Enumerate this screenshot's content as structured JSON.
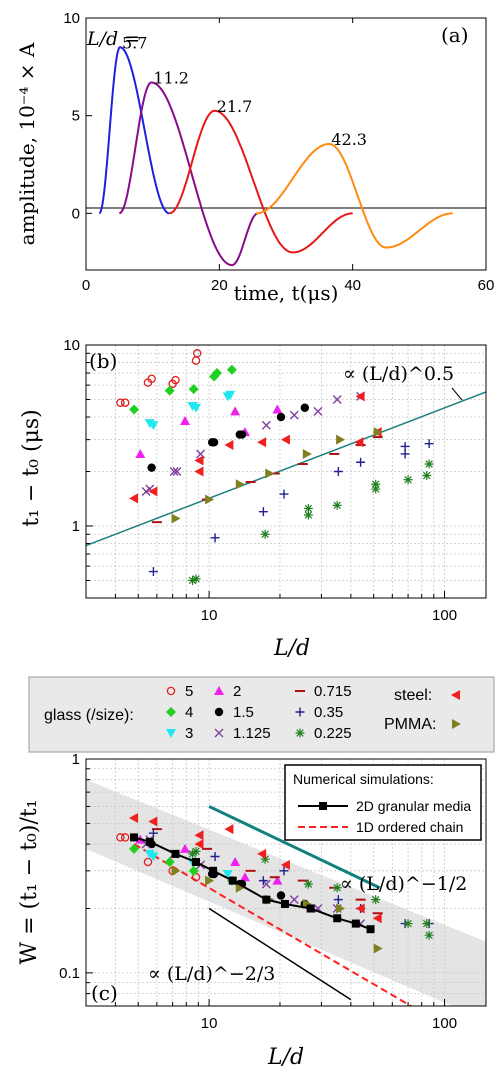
{
  "panel_a": {
    "label": "(a)",
    "legend_prefix": "L/d =",
    "xlabel": "time, t(μs)",
    "ylabel": "amplitude, 10⁻⁴ × A"
  },
  "panel_b": {
    "label": "(b)",
    "xlabel": "L/d",
    "ylabel": "t₁ − t₀ (μs)",
    "annotation": "∝ (L/d)^0.5"
  },
  "legend": {
    "glass_label": "glass (/size):",
    "steel_label": "steel:",
    "pmma_label": "PMMA:"
  },
  "panel_c": {
    "label": "(c)",
    "xlabel": "L/d",
    "ylabel": "W = (t₁ − t₀)/t₁",
    "box_title": "Numerical simulations:",
    "annotation_half": "∝ (L/d)^−1/2",
    "annotation_twothirds": "∝ (L/d)^−2/3"
  },
  "colors": {
    "s5": "#e02020",
    "s4": "#20d020",
    "s3": "#20e8f0",
    "s2": "#f020f0",
    "s1_5": "#000000",
    "s1_125": "#8040a0",
    "s0_715": "#b01010",
    "s0_35": "#202090",
    "s0_225": "#208020",
    "steel": "#f02020",
    "pmma": "#808020",
    "fit_b": "#208080",
    "sim2d": "#000000",
    "sim1d": "#ff2020",
    "band": "#e4e4e4",
    "teal": "#108080"
  },
  "chart_data": [
    {
      "type": "line",
      "title": "",
      "xlabel": "time, t(μs)",
      "ylabel": "amplitude, 10⁻⁴ × A",
      "xlim": [
        0,
        60
      ],
      "ylim": [
        -2.9,
        10
      ],
      "xticks": [
        0,
        20,
        40,
        60
      ],
      "yticks": [
        0,
        5,
        10
      ],
      "series": [
        {
          "name": "5.7",
          "color": "#2020e0",
          "t0": 2.0,
          "peak_t": 5.1,
          "peak": 8.5,
          "trough_t": 13.0,
          "trough": 0.0,
          "end_t": 12.5
        },
        {
          "name": "11.2",
          "color": "#8a0a8a",
          "t0": 5.0,
          "peak_t": 9.8,
          "peak": 6.7,
          "trough_t": 21.9,
          "trough": -2.65,
          "end_t": 25.8
        },
        {
          "name": "21.7",
          "color": "#e81818",
          "t0": 12.5,
          "peak_t": 19.3,
          "peak": 5.25,
          "trough_t": 31.0,
          "trough": -2.0,
          "end_t": 40.0
        },
        {
          "name": "42.3",
          "color": "#ff8a10",
          "t0": 25.5,
          "peak_t": 36.5,
          "peak": 3.55,
          "trough_t": 45.0,
          "trough": -1.75,
          "end_t": 55.0
        }
      ]
    },
    {
      "type": "scatter",
      "title": "",
      "xlabel": "L/d",
      "ylabel": "t₁ − t₀ (μs)",
      "xscale": "log",
      "yscale": "log",
      "xlim": [
        3,
        150
      ],
      "ylim": [
        0.4,
        10
      ],
      "xticks": [
        10,
        100
      ],
      "yticks": [
        1,
        10
      ],
      "fit_line": {
        "label": "∝ (L/d)^0.5",
        "x": [
          3,
          150
        ],
        "y": [
          0.78,
          5.5
        ]
      },
      "series": [
        {
          "name": "5",
          "marker": "circle-open",
          "color": "#e02020",
          "points": [
            [
              4.2,
              4.8
            ],
            [
              4.4,
              4.8
            ],
            [
              5.5,
              6.2
            ],
            [
              5.7,
              6.5
            ],
            [
              7,
              6.1
            ],
            [
              7.2,
              6.4
            ],
            [
              8.8,
              8.2
            ],
            [
              8.9,
              9
            ]
          ]
        },
        {
          "name": "4",
          "marker": "diamond",
          "color": "#20d020",
          "points": [
            [
              4.8,
              4.4
            ],
            [
              6.8,
              5.6
            ],
            [
              8.6,
              5.7
            ],
            [
              10.5,
              6.7
            ],
            [
              10.8,
              7
            ],
            [
              12.5,
              7.3
            ]
          ]
        },
        {
          "name": "3",
          "marker": "triangle-down",
          "color": "#20e8f0",
          "points": [
            [
              5.6,
              3.7
            ],
            [
              5.8,
              3.6
            ],
            [
              8.5,
              4.6
            ],
            [
              8.8,
              4.5
            ],
            [
              12,
              5.2
            ],
            [
              12.3,
              5.3
            ]
          ]
        },
        {
          "name": "2",
          "marker": "triangle-up",
          "color": "#f020f0",
          "points": [
            [
              5.1,
              2.5
            ],
            [
              7.9,
              3.8
            ],
            [
              12.9,
              4.3
            ],
            [
              14.2,
              3.3
            ],
            [
              19.5,
              4.4
            ]
          ]
        },
        {
          "name": "1.5",
          "marker": "circle",
          "color": "#000000",
          "points": [
            [
              5.7,
              2.1
            ],
            [
              10.3,
              2.9
            ],
            [
              10.5,
              2.9
            ],
            [
              13.5,
              3.2
            ],
            [
              13.8,
              3.2
            ],
            [
              20.2,
              4
            ],
            [
              25.5,
              4.5
            ]
          ]
        },
        {
          "name": "1.125",
          "marker": "x",
          "color": "#8040a0",
          "points": [
            [
              5.4,
              1.55
            ],
            [
              5.6,
              1.6
            ],
            [
              7.1,
              2.0
            ],
            [
              7.3,
              2.0
            ],
            [
              9.2,
              2.5
            ],
            [
              17.5,
              3.6
            ],
            [
              23,
              4.1
            ],
            [
              29,
              4.3
            ],
            [
              35,
              5
            ],
            [
              44,
              5.2
            ]
          ]
        },
        {
          "name": "0.715",
          "marker": "dash",
          "color": "#b01010",
          "points": [
            [
              6,
              1.05
            ],
            [
              9.8,
              1.4
            ],
            [
              15,
              1.75
            ],
            [
              19,
              1.95
            ],
            [
              25,
              2.2
            ],
            [
              34,
              2.5
            ],
            [
              44,
              2.8
            ],
            [
              52,
              3.1
            ]
          ]
        },
        {
          "name": "0.35",
          "marker": "plus",
          "color": "#202090",
          "points": [
            [
              5.8,
              0.56
            ],
            [
              10.6,
              0.86
            ],
            [
              17,
              1.2
            ],
            [
              20.8,
              1.5
            ],
            [
              35.4,
              2.0
            ],
            [
              44,
              2.25
            ],
            [
              68,
              2.5
            ],
            [
              68,
              2.75
            ],
            [
              86,
              2.85
            ]
          ]
        },
        {
          "name": "0.225",
          "marker": "asterisk",
          "color": "#208020",
          "points": [
            [
              8.5,
              0.5
            ],
            [
              8.8,
              0.51
            ],
            [
              17.3,
              0.9
            ],
            [
              26.4,
              1.15
            ],
            [
              26.4,
              1.25
            ],
            [
              35,
              1.3
            ],
            [
              51,
              1.6
            ],
            [
              51,
              1.7
            ],
            [
              70,
              1.8
            ],
            [
              84,
              1.9
            ],
            [
              86,
              2.2
            ]
          ]
        },
        {
          "name": "steel",
          "marker": "triangle-left",
          "color": "#f02020",
          "points": [
            [
              4.8,
              1.42
            ],
            [
              5.8,
              1.55
            ],
            [
              9.1,
              2.0
            ],
            [
              9.1,
              2.3
            ],
            [
              12.2,
              2.8
            ],
            [
              16.8,
              2.9
            ],
            [
              21.2,
              3.0
            ],
            [
              43.5,
              2.9
            ],
            [
              44,
              5.2
            ],
            [
              52,
              3.3
            ]
          ]
        },
        {
          "name": "PMMA",
          "marker": "triangle-right",
          "color": "#808020",
          "points": [
            [
              7.2,
              1.1
            ],
            [
              10,
              1.4
            ],
            [
              13.5,
              1.7
            ],
            [
              18,
              1.95
            ],
            [
              26,
              2.5
            ],
            [
              36,
              3
            ],
            [
              52,
              3.3
            ]
          ]
        }
      ]
    },
    {
      "type": "scatter",
      "title": "",
      "xlabel": "L/d",
      "ylabel": "W = (t₁ − t₀)/t₁",
      "xscale": "log",
      "yscale": "log",
      "xlim": [
        3,
        150
      ],
      "ylim": [
        0.07,
        1
      ],
      "xticks": [
        10,
        100
      ],
      "yticks": [
        0.1,
        1
      ],
      "legend_position": "top-right",
      "band": {
        "x": [
          3,
          150
        ],
        "upper": [
          0.8,
          0.14
        ],
        "lower": [
          0.38,
          0.06
        ]
      },
      "lines": [
        {
          "name": "2D granular media",
          "style": "solid-square",
          "color": "#000000",
          "x": [
            4.8,
            5.6,
            7.2,
            8.8,
            10.4,
            12.6,
            17.5,
            21,
            27,
            35,
            42,
            48.5
          ],
          "y": [
            0.43,
            0.41,
            0.36,
            0.33,
            0.3,
            0.27,
            0.22,
            0.21,
            0.2,
            0.18,
            0.17,
            0.16
          ]
        },
        {
          "name": "1D ordered chain",
          "style": "dashed",
          "color": "#ff2020",
          "x": [
            4.8,
            72
          ],
          "y": [
            0.4,
            0.07
          ]
        },
        {
          "name": "∝ (L/d)^−1/2",
          "style": "solid",
          "color": "#108080",
          "x": [
            10,
            53
          ],
          "y": [
            0.6,
            0.25
          ]
        },
        {
          "name": "∝ (L/d)^−2/3",
          "style": "solid",
          "color": "#000000",
          "x": [
            10,
            40
          ],
          "y": [
            0.2,
            0.075
          ]
        }
      ],
      "series": [
        {
          "name": "5",
          "marker": "circle-open",
          "color": "#e02020",
          "points": [
            [
              4.2,
              0.43
            ],
            [
              4.4,
              0.43
            ],
            [
              5.5,
              0.33
            ],
            [
              7,
              0.3
            ],
            [
              8.8,
              0.28
            ]
          ]
        },
        {
          "name": "4",
          "marker": "diamond",
          "color": "#20d020",
          "points": [
            [
              4.8,
              0.38
            ],
            [
              6.8,
              0.33
            ],
            [
              8.6,
              0.3
            ],
            [
              10.5,
              0.29
            ],
            [
              12.5,
              0.27
            ]
          ]
        },
        {
          "name": "3",
          "marker": "triangle-down",
          "color": "#20e8f0",
          "points": [
            [
              5.6,
              0.36
            ],
            [
              5.8,
              0.35
            ],
            [
              8.5,
              0.33
            ],
            [
              12,
              0.29
            ]
          ]
        },
        {
          "name": "2",
          "marker": "triangle-up",
          "color": "#f020f0",
          "points": [
            [
              5.1,
              0.42
            ],
            [
              7.9,
              0.38
            ],
            [
              12.9,
              0.33
            ],
            [
              14.2,
              0.28
            ],
            [
              19.5,
              0.27
            ]
          ]
        },
        {
          "name": "1.5",
          "marker": "circle",
          "color": "#000000",
          "points": [
            [
              5.7,
              0.4
            ],
            [
              10.3,
              0.29
            ],
            [
              10.5,
              0.29
            ],
            [
              13.5,
              0.26
            ],
            [
              13.8,
              0.26
            ],
            [
              20.2,
              0.23
            ],
            [
              25.5,
              0.21
            ]
          ]
        },
        {
          "name": "1.125",
          "marker": "x",
          "color": "#8040a0",
          "points": [
            [
              5.4,
              0.4
            ],
            [
              5.6,
              0.42
            ],
            [
              7.1,
              0.36
            ],
            [
              9.2,
              0.32
            ],
            [
              17.5,
              0.26
            ],
            [
              23,
              0.22
            ],
            [
              29,
              0.2
            ],
            [
              35,
              0.2
            ],
            [
              44,
              0.17
            ]
          ]
        },
        {
          "name": "0.715",
          "marker": "dash",
          "color": "#b01010",
          "points": [
            [
              6,
              0.47
            ],
            [
              9.8,
              0.38
            ],
            [
              15,
              0.3
            ],
            [
              19,
              0.28
            ],
            [
              25,
              0.27
            ],
            [
              34,
              0.25
            ],
            [
              44,
              0.22
            ],
            [
              52,
              0.19
            ]
          ]
        },
        {
          "name": "0.35",
          "marker": "plus",
          "color": "#202090",
          "points": [
            [
              5.8,
              0.45
            ],
            [
              10.6,
              0.35
            ],
            [
              17,
              0.27
            ],
            [
              20.8,
              0.3
            ],
            [
              35.4,
              0.22
            ],
            [
              44,
              0.2
            ],
            [
              68,
              0.17
            ],
            [
              86,
              0.17
            ]
          ]
        },
        {
          "name": "0.225",
          "marker": "asterisk",
          "color": "#208020",
          "points": [
            [
              8.5,
              0.36
            ],
            [
              8.8,
              0.37
            ],
            [
              17.3,
              0.34
            ],
            [
              26.4,
              0.26
            ],
            [
              35,
              0.25
            ],
            [
              51,
              0.22
            ],
            [
              70,
              0.17
            ],
            [
              84,
              0.17
            ],
            [
              86,
              0.15
            ]
          ]
        },
        {
          "name": "steel",
          "marker": "triangle-left",
          "color": "#f02020",
          "points": [
            [
              4.8,
              0.53
            ],
            [
              5.8,
              0.51
            ],
            [
              9.1,
              0.4
            ],
            [
              9.1,
              0.44
            ],
            [
              12.2,
              0.47
            ],
            [
              16.8,
              0.36
            ],
            [
              21.2,
              0.32
            ],
            [
              43.5,
              0.45
            ],
            [
              44,
              0.2
            ],
            [
              52,
              0.18
            ]
          ]
        },
        {
          "name": "PMMA",
          "marker": "triangle-right",
          "color": "#808020",
          "points": [
            [
              7.2,
              0.3
            ],
            [
              10,
              0.27
            ],
            [
              13.5,
              0.25
            ],
            [
              18,
              0.22
            ],
            [
              26,
              0.21
            ],
            [
              36,
              0.2
            ],
            [
              52,
              0.13
            ]
          ]
        }
      ]
    }
  ]
}
